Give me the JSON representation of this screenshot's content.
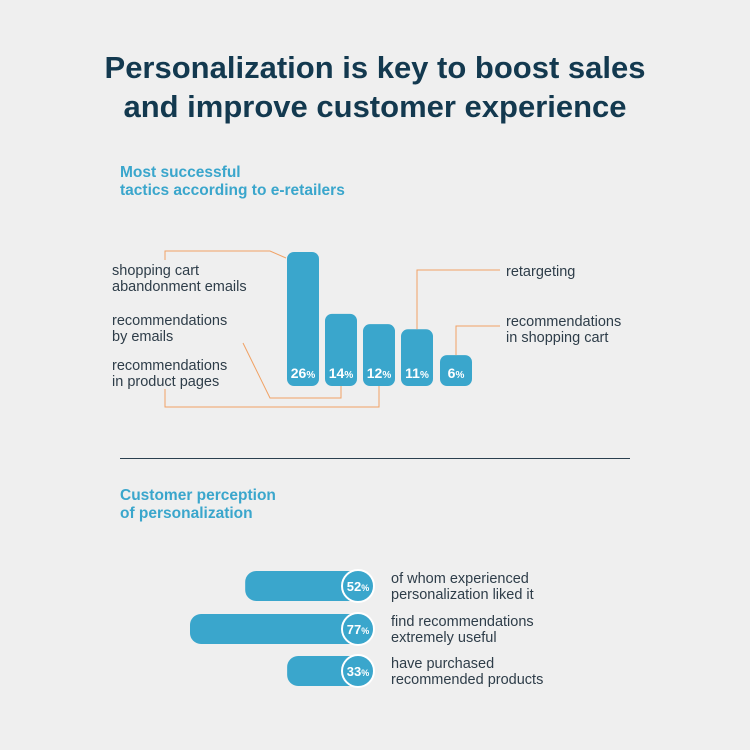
{
  "header": {
    "title_line1": "Personalization is key to boost sales",
    "title_line2": "and improve customer experience"
  },
  "colors": {
    "bar": "#3aa6cc",
    "leader": "#f0a265",
    "text": "#2e3d49",
    "title": "#13394f"
  },
  "chart_data": [
    {
      "type": "bar",
      "title_lines": [
        "Most successful",
        "tactics according to e-retailers"
      ],
      "categories": [
        [
          "shopping cart",
          "abandonment emails"
        ],
        [
          "recommendations",
          "by emails"
        ],
        [
          "recommendations",
          "in product pages"
        ],
        [
          "retargeting"
        ],
        [
          "recommendations",
          "in shopping cart"
        ]
      ],
      "values": [
        26,
        14,
        12,
        11,
        6
      ],
      "value_labels": [
        "26",
        "14",
        "12",
        "11",
        "6"
      ],
      "unit": "%"
    },
    {
      "type": "bar",
      "orientation": "horizontal",
      "title_lines": [
        "Customer perception",
        "of personalization"
      ],
      "categories": [
        [
          "of whom experienced",
          "personalization liked it"
        ],
        [
          "find recommendations",
          "extremely useful"
        ],
        [
          "have purchased",
          "recommended products"
        ]
      ],
      "values": [
        52,
        77,
        33
      ],
      "value_labels": [
        "52",
        "77",
        "33"
      ],
      "unit": "%"
    }
  ]
}
